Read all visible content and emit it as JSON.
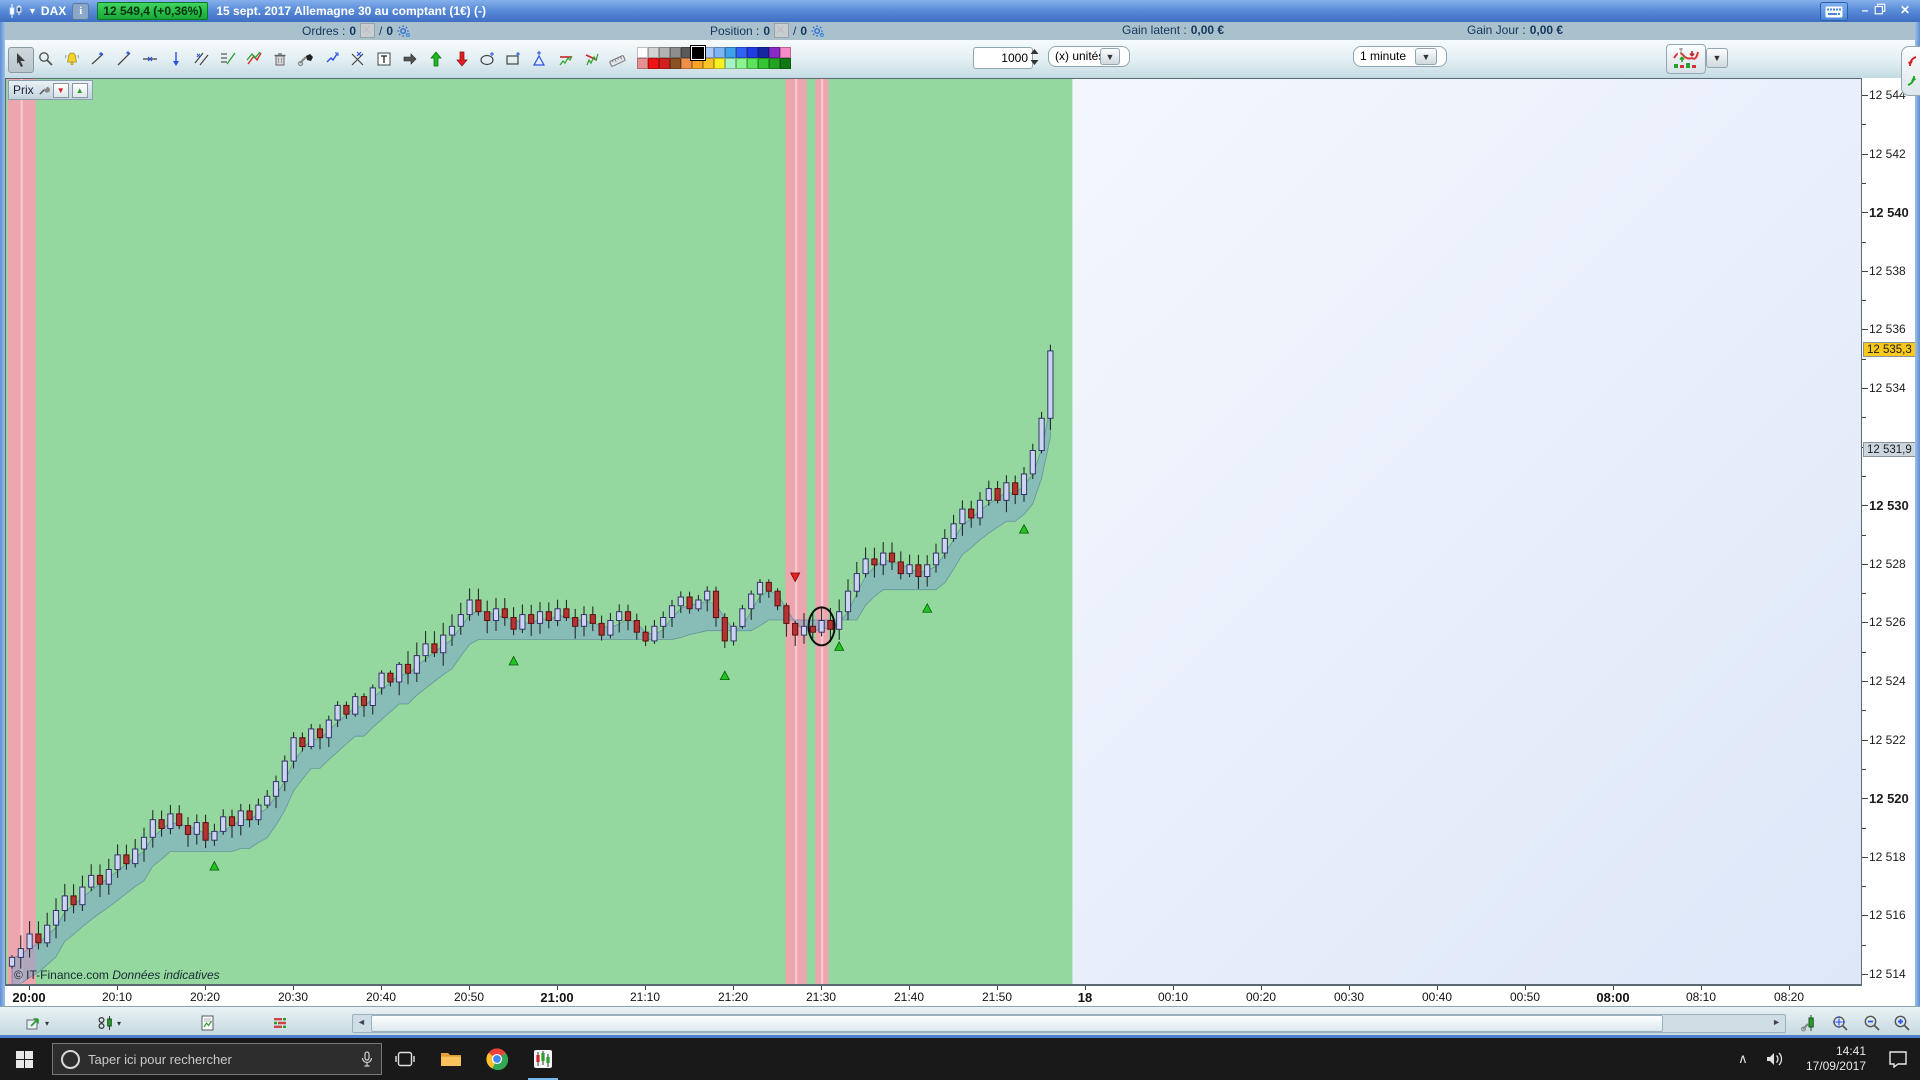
{
  "window": {
    "instrument": "DAX",
    "price_badge": "12 549,4 (+0,36%)",
    "session_info": "15 sept. 2017  Allemagne 30 au comptant (1€) (-)",
    "info_icon": "i",
    "minimize": "–",
    "close": "✕"
  },
  "infobar": {
    "orders_label": "Ordres :",
    "orders_value": "0",
    "orders_slash": "/",
    "orders_value2": "0",
    "position_label": "Position :",
    "position_value": "0",
    "position_slash": "/",
    "position_value2": "0",
    "gain_latent_label": "Gain latent :",
    "gain_latent_value": "0,00 €",
    "gain_jour_label": "Gain Jour :",
    "gain_jour_value": "0,00 €"
  },
  "toolbar": {
    "quantity": "1000",
    "unit": "(x) unités",
    "timeframe": "1 minute",
    "icons": [
      "cursor",
      "zoom",
      "alert-bell",
      "point",
      "trendline",
      "horizontal-line",
      "vertical-line",
      "parallel-lines",
      "fibonacci",
      "pitchfork",
      "trash",
      "eraser",
      "polyline",
      "delete-drawings",
      "text",
      "arrow-right",
      "arrow-up",
      "arrow-down",
      "ellipse-tool",
      "rectangle-tool",
      "triangle-tool",
      "channel-up",
      "channel-down",
      "ruler"
    ],
    "selected_icon": "cursor",
    "palette_row1": [
      "#ffffff",
      "#d4d4d4",
      "#b2b2b2",
      "#8e8e8e",
      "#5a5a5a",
      "#000000",
      "#aac8f8",
      "#7fb4f4",
      "#3fa0ee",
      "#2f62f2",
      "#1f3ce4",
      "#1626a0",
      "#8a2ac8",
      "#f78cc8"
    ],
    "palette_row2": [
      "#e89090",
      "#f01414",
      "#d02020",
      "#8a5222",
      "#f09048",
      "#f8a428",
      "#f8c428",
      "#f8f020",
      "#a6f4c6",
      "#8cf48c",
      "#5ae45a",
      "#34c434",
      "#22a422",
      "#127812"
    ],
    "selected_color": "#000000"
  },
  "chart": {
    "pane_label": "Prix",
    "watermark": "© IT-Finance.com",
    "watermark_note": "Données indicatives"
  },
  "chart_data": {
    "type": "candlestick",
    "title": "DAX — Allemagne 30 au comptant",
    "interval": "1 minute",
    "start_time": "20:00",
    "interval_minutes": 1,
    "x_axis_labels": [
      {
        "t": "20:00",
        "bold": true
      },
      {
        "t": "20:10"
      },
      {
        "t": "20:20"
      },
      {
        "t": "20:30"
      },
      {
        "t": "20:40"
      },
      {
        "t": "20:50"
      },
      {
        "t": "21:00",
        "bold": true
      },
      {
        "t": "21:10"
      },
      {
        "t": "21:20"
      },
      {
        "t": "21:30"
      },
      {
        "t": "21:40"
      },
      {
        "t": "21:50"
      },
      {
        "t": "18",
        "bold": true
      },
      {
        "t": "00:10"
      },
      {
        "t": "00:20"
      },
      {
        "t": "00:30"
      },
      {
        "t": "00:40"
      },
      {
        "t": "00:50"
      },
      {
        "t": "08:00",
        "bold": true
      },
      {
        "t": "08:10"
      },
      {
        "t": "08:20"
      }
    ],
    "y_axis": {
      "min": 12514,
      "max": 12544,
      "label_step": 2,
      "minor_step": 1,
      "bold_labels": [
        12540,
        12530,
        12520
      ],
      "hidden_label": 12532
    },
    "last_price": 12535.3,
    "last_price_label": "12 535,3",
    "reference_price": 12531.9,
    "reference_price_label": "12 531,9",
    "closes": [
      12514.6,
      12514.9,
      12515.4,
      12515.1,
      12515.7,
      12516.2,
      12516.7,
      12516.4,
      12517.0,
      12517.4,
      12517.1,
      12517.6,
      12518.1,
      12517.8,
      12518.3,
      12518.7,
      12519.3,
      12519.0,
      12519.5,
      12519.1,
      12518.8,
      12519.2,
      12518.6,
      12518.9,
      12519.4,
      12519.1,
      12519.6,
      12519.3,
      12519.8,
      12520.1,
      12520.6,
      12521.3,
      12522.1,
      12521.8,
      12522.4,
      12522.1,
      12522.7,
      12523.2,
      12522.9,
      12523.5,
      12523.2,
      12523.8,
      12524.3,
      12524.0,
      12524.6,
      12524.3,
      12524.9,
      12525.3,
      12525.0,
      12525.6,
      12525.9,
      12526.3,
      12526.8,
      12526.4,
      12526.1,
      12526.5,
      12526.2,
      12525.8,
      12526.3,
      12526.0,
      12526.4,
      12526.1,
      12526.5,
      12526.2,
      12525.9,
      12526.3,
      12526.0,
      12525.6,
      12526.1,
      12526.4,
      12526.1,
      12525.7,
      12525.4,
      12525.9,
      12526.2,
      12526.6,
      12526.9,
      12526.5,
      12526.8,
      12527.1,
      12526.2,
      12525.4,
      12525.9,
      12526.5,
      12527.0,
      12527.4,
      12527.1,
      12526.6,
      12526.0,
      12525.6,
      12525.9,
      12525.7,
      12526.1,
      12525.8,
      12526.4,
      12527.1,
      12527.7,
      12528.2,
      12528.0,
      12528.4,
      12528.1,
      12527.7,
      12528.0,
      12527.6,
      12528.0,
      12528.4,
      12528.9,
      12529.4,
      12529.9,
      12529.6,
      12530.2,
      12530.6,
      12530.2,
      12530.8,
      12530.4,
      12531.1,
      12531.9,
      12533.0,
      12535.3
    ],
    "signals_up": [
      {
        "minute": 23,
        "price": 12517.7
      },
      {
        "minute": 57,
        "price": 12524.7
      },
      {
        "minute": 81,
        "price": 12524.2
      },
      {
        "minute": 94,
        "price": 12525.2
      },
      {
        "minute": 104,
        "price": 12526.5
      },
      {
        "minute": 115,
        "price": 12529.2
      }
    ],
    "signal_down": {
      "minute": 89,
      "price": 12527.6
    },
    "highlight_zones_minutes": [
      {
        "from": -0.5,
        "to": 2.7
      },
      {
        "from": 87.9,
        "to": 90.3
      },
      {
        "from": 91.3,
        "to": 92.8
      }
    ],
    "drawing_ellipse": {
      "minute": 92,
      "price": 12525.9
    },
    "session_end_minute": 120.5,
    "colors": {
      "session_background": "#94d8a0",
      "highlight_zone": "#eda6ae",
      "ribbon": "rgba(125,165,200,0.55)",
      "up_candle": "#ccd4f2",
      "down_candle": "#b43434",
      "buy_arrow": "#1fc41f",
      "sell_arrow": "#e82020",
      "last_price_badge": "#f8c81c",
      "reference_badge": "#ccd6de"
    }
  },
  "bottombar": {
    "icons_left": [
      "chart-export",
      "chart-style",
      "report",
      "order-book"
    ],
    "icons_right": [
      "wrench-candle",
      "zoom-fit",
      "zoom-out",
      "zoom-in"
    ],
    "scroll_left": "◄",
    "scroll_right": "►"
  },
  "taskbar": {
    "search_placeholder": "Taper ici pour rechercher",
    "time": "14:41",
    "date": "17/09/2017",
    "tray_chevron": "∧"
  }
}
